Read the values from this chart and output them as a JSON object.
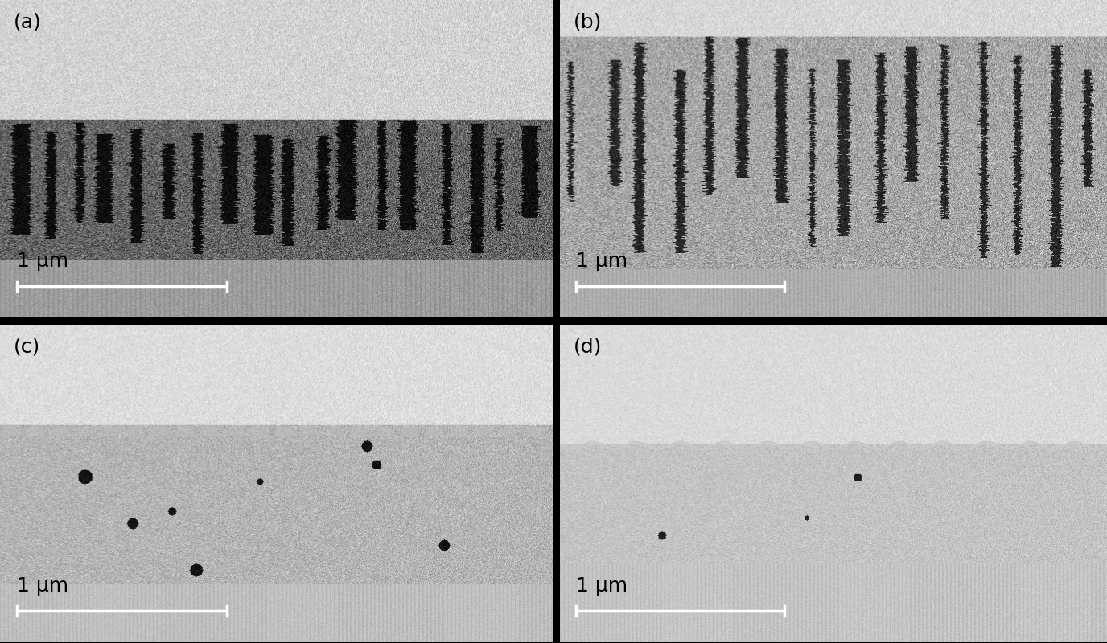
{
  "labels": [
    "(a)",
    "(b)",
    "(c)",
    "(d)"
  ],
  "scale_label": "1 μm",
  "bg_color": "#000000",
  "label_fontsize": 18,
  "scale_fontsize": 18,
  "fig_width": 13.76,
  "fig_height": 8.0
}
